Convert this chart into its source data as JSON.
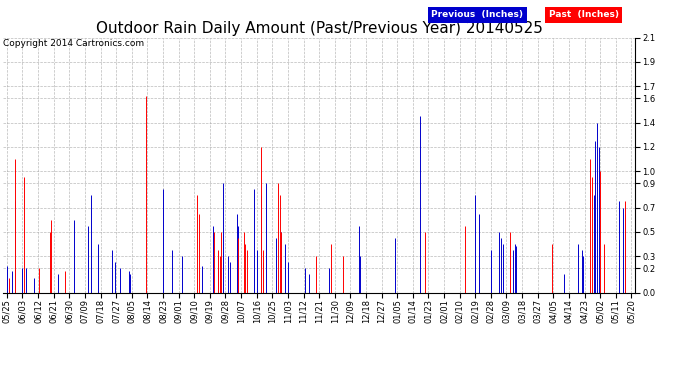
{
  "title": "Outdoor Rain Daily Amount (Past/Previous Year) 20140525",
  "copyright": "Copyright 2014 Cartronics.com",
  "legend_previous": "Previous  (Inches)",
  "legend_past": "Past  (Inches)",
  "bg_color": "#ffffff",
  "plot_bg_color": "#ffffff",
  "grid_color": "#aaaaaa",
  "line_color_previous": "#0000cc",
  "line_color_past": "#ff0000",
  "ylim": [
    0.0,
    2.1
  ],
  "yticks": [
    0.0,
    0.2,
    0.3,
    0.5,
    0.7,
    0.9,
    1.0,
    1.2,
    1.4,
    1.6,
    1.7,
    1.9,
    2.1
  ],
  "title_fontsize": 11,
  "copyright_fontsize": 6.5,
  "tick_label_fontsize": 6,
  "xtick_labels": [
    "05/25",
    "06/03",
    "06/12",
    "06/21",
    "06/30",
    "07/09",
    "07/18",
    "07/27",
    "08/05",
    "08/14",
    "08/23",
    "09/01",
    "09/10",
    "09/19",
    "09/28",
    "10/07",
    "10/16",
    "10/25",
    "11/03",
    "11/12",
    "11/21",
    "11/30",
    "12/09",
    "12/18",
    "12/27",
    "01/05",
    "01/14",
    "01/23",
    "02/01",
    "02/10",
    "02/19",
    "02/28",
    "03/09",
    "03/18",
    "03/27",
    "04/05",
    "04/14",
    "04/23",
    "05/02",
    "05/11",
    "05/20"
  ],
  "n_points": 365,
  "prev_data": [
    0.22,
    0,
    0,
    0.18,
    0,
    0.75,
    0,
    0,
    0,
    0.2,
    0,
    0.2,
    0,
    0,
    0,
    0,
    0.12,
    0,
    0,
    0,
    0,
    0,
    0,
    0,
    0,
    0,
    0,
    0,
    0,
    0,
    0.15,
    0,
    0,
    0,
    0,
    0,
    0,
    0,
    0,
    0.6,
    0,
    0,
    0,
    0,
    0,
    0,
    0,
    0.55,
    0,
    0.8,
    0,
    0,
    0,
    0.4,
    0,
    0,
    0,
    0,
    0,
    0,
    0,
    0.35,
    0,
    0.25,
    0,
    0,
    0.2,
    0,
    0,
    0,
    0,
    0.18,
    0.15,
    0,
    0,
    0,
    0,
    0,
    0,
    0,
    0,
    0,
    0,
    0,
    0,
    0,
    0,
    0,
    0,
    0,
    0,
    0.85,
    0,
    0,
    0,
    0,
    0.35,
    0,
    0,
    0,
    0,
    0,
    0.3,
    0,
    0,
    0,
    0,
    0,
    0,
    0,
    0,
    0,
    0,
    0,
    0.22,
    0,
    0,
    0,
    0,
    0,
    0.55,
    0,
    0,
    0.2,
    0.2,
    0,
    0.9,
    0,
    0,
    0.3,
    0.25,
    0,
    0,
    0,
    0.65,
    0.55,
    0,
    0,
    0,
    0,
    0,
    0,
    0,
    0,
    0.85,
    0,
    0.35,
    0,
    0.8,
    0.25,
    0,
    0.9,
    0,
    0,
    0,
    0,
    0,
    0.45,
    0,
    0,
    0.5,
    0,
    0.4,
    0,
    0.25,
    0,
    0,
    0,
    0,
    0,
    0,
    0,
    0,
    0,
    0.2,
    0,
    0.15,
    0,
    0,
    0,
    0,
    0,
    0,
    0,
    0,
    0,
    0,
    0,
    0.2,
    0,
    0,
    0,
    0,
    0,
    0,
    0,
    0,
    0,
    0,
    0,
    0,
    0,
    0,
    0,
    0,
    0.55,
    0.3,
    0,
    0,
    0,
    0,
    0,
    0,
    0,
    0,
    0,
    0,
    0,
    0,
    0,
    0,
    0,
    0,
    0,
    0,
    0,
    0.45,
    0,
    0,
    0,
    0,
    0,
    0,
    0,
    0,
    0,
    0,
    0,
    0,
    0,
    0,
    1.45,
    0,
    0,
    0,
    0,
    0,
    0,
    0,
    0,
    0,
    0,
    0,
    0,
    0,
    0,
    0,
    0,
    0,
    0,
    0,
    0,
    0,
    0,
    0,
    0,
    0,
    0,
    0,
    0,
    0,
    0,
    0,
    0.8,
    0,
    0.65,
    0,
    0,
    0,
    0,
    0,
    0,
    0.35,
    0,
    0,
    0,
    0,
    0.5,
    0.45,
    0.4,
    0,
    0,
    0,
    0,
    0,
    0.35,
    0.4,
    0.38,
    0,
    0,
    0,
    0,
    0,
    0,
    0,
    0,
    0,
    0,
    0,
    0,
    0,
    0,
    0,
    0,
    0,
    0,
    0,
    0,
    0,
    0,
    0,
    0,
    0,
    0,
    0,
    0.15,
    0,
    0,
    0,
    0,
    0,
    0,
    0,
    0.4,
    0,
    0.35,
    0.3,
    0,
    0,
    0,
    0,
    0,
    0.8,
    1.25,
    1.4,
    1.2,
    0,
    0,
    0,
    0,
    0,
    0,
    0,
    0,
    0,
    0,
    0,
    0.75,
    0,
    0.7,
    0.65,
    0,
    0
  ],
  "past_data": [
    0,
    0.12,
    0,
    0,
    0,
    1.1,
    0,
    0,
    0,
    0,
    0.95,
    0,
    0,
    0,
    0,
    0,
    0,
    0,
    0,
    0.2,
    0,
    0,
    0,
    0,
    0,
    0.5,
    0.6,
    0,
    0,
    0,
    0,
    0,
    0,
    0,
    0.18,
    0,
    0,
    0,
    0,
    0,
    0,
    0,
    0,
    0,
    0,
    0,
    0,
    0,
    0,
    0,
    0,
    0,
    0,
    0,
    0,
    0,
    0,
    0,
    0,
    0,
    0,
    0,
    0,
    0,
    0,
    0,
    0,
    0,
    0,
    0,
    0,
    0,
    0,
    0,
    0,
    0,
    0,
    0,
    0,
    0,
    0,
    1.62,
    0,
    0,
    0,
    0,
    0,
    0,
    0,
    0,
    0,
    0,
    0,
    0,
    0,
    0,
    0,
    0,
    0,
    0,
    0,
    0,
    0,
    0,
    0,
    0,
    0,
    0,
    0,
    0,
    0,
    0.8,
    0.65,
    0,
    0,
    0,
    0,
    0,
    0,
    0,
    0,
    0.5,
    0,
    0.35,
    0.3,
    0.5,
    0,
    0,
    0,
    0,
    0,
    0,
    0,
    0,
    0,
    0.45,
    0,
    0,
    0.5,
    0.4,
    0.35,
    0,
    0,
    0,
    0,
    0,
    0,
    0,
    1.2,
    0.35,
    0,
    0,
    0,
    0,
    0,
    0,
    0,
    0,
    0.9,
    0.8,
    0.5,
    0,
    0,
    0,
    0,
    0,
    0,
    0,
    0,
    0,
    0,
    0,
    0,
    0,
    0,
    0,
    0,
    0,
    0,
    0,
    0.3,
    0,
    0,
    0,
    0,
    0,
    0,
    0,
    0,
    0.4,
    0,
    0,
    0,
    0,
    0,
    0,
    0.3,
    0,
    0,
    0,
    0,
    0,
    0,
    0,
    0,
    0,
    0,
    0,
    0,
    0,
    0,
    0,
    0,
    0,
    0,
    0,
    0,
    0,
    0,
    0,
    0,
    0,
    0,
    0,
    0,
    0,
    0,
    0,
    0,
    0,
    0,
    0,
    0,
    0,
    0,
    0,
    0,
    0,
    0,
    0,
    0,
    0,
    0,
    0,
    0.5,
    0,
    0,
    0,
    0,
    0,
    0,
    0,
    0,
    0,
    0,
    0,
    0,
    0,
    0,
    0,
    0,
    0,
    0,
    0,
    0,
    0,
    0,
    0.55,
    0,
    0,
    0,
    0,
    0,
    0,
    0,
    0,
    0,
    0,
    0,
    0,
    0,
    0,
    0,
    0,
    0,
    0,
    0,
    0,
    0,
    0,
    0,
    0,
    0,
    0.5,
    0,
    0,
    0,
    0,
    0,
    0,
    0,
    0,
    0,
    0,
    0,
    0,
    0,
    0,
    0,
    0,
    0,
    0,
    0,
    0,
    0,
    0,
    0,
    0,
    0.4,
    0,
    0,
    0,
    0,
    0,
    0,
    0,
    0,
    0,
    0,
    0,
    0,
    0,
    0,
    0,
    0,
    0,
    0,
    0,
    0,
    0,
    1.1,
    0.95,
    0,
    0,
    0,
    0,
    1.0,
    0,
    0.4,
    0,
    0,
    0,
    0,
    0,
    0,
    0,
    0,
    0,
    0,
    0,
    0.75,
    0,
    0
  ]
}
